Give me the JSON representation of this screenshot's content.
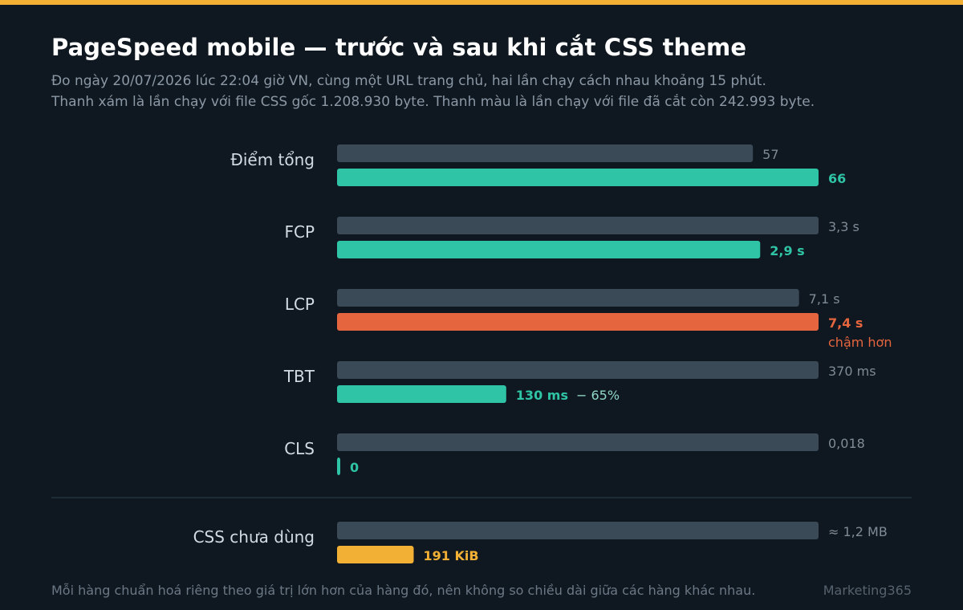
{
  "header": {
    "title": "PageSpeed mobile — trước và sau khi cắt CSS theme",
    "subtitle_line1": "Đo ngày 20/07/2026 lúc 22:04 giờ VN, cùng một URL trang chủ, hai lần chạy cách nhau khoảng 15 phút.",
    "subtitle_line2": "Thanh xám là lần chạy với file CSS gốc 1.208.930 byte. Thanh màu là lần chạy với file đã cắt còn 242.993 byte."
  },
  "footer": {
    "note": "Mỗi hàng chuẩn hoá riêng theo giá trị lớn hơn của hàng đó, nên không so chiều dài giữa các hàng khác nhau.",
    "brand": "Marketing365"
  },
  "colors": {
    "before": "#3a4a57",
    "improved": "#2ec4a5",
    "worse": "#e5663e",
    "css": "#f2b134",
    "before_label": "#7f8b96",
    "category_label": "#d3dbe2",
    "note_text": "#8fd8c6"
  },
  "chart_data": {
    "type": "bar",
    "orientation": "horizontal",
    "normalization": "per-row max",
    "series": [
      {
        "name": "before",
        "description_key": "gray"
      },
      {
        "name": "after",
        "description_key": "colored"
      }
    ],
    "rows": [
      {
        "category": "Điểm tổng",
        "before": 57,
        "after": 66,
        "before_label": "57",
        "after_label": "66",
        "status": "improved",
        "note": ""
      },
      {
        "category": "FCP",
        "before": 3.3,
        "after": 2.9,
        "before_label": "3,3 s",
        "after_label": "2,9 s",
        "status": "improved",
        "note": ""
      },
      {
        "category": "LCP",
        "before": 7.1,
        "after": 7.4,
        "before_label": "7,1 s",
        "after_label": "7,4 s",
        "status": "worse",
        "note": "chậm hơn"
      },
      {
        "category": "TBT",
        "before": 370,
        "after": 130,
        "before_label": "370 ms",
        "after_label": "130 ms",
        "status": "improved",
        "note": "− 65%"
      },
      {
        "category": "CLS",
        "before": 0.018,
        "after": 0,
        "before_label": "0,018",
        "after_label": "0",
        "status": "improved",
        "note": ""
      }
    ],
    "extra_row": {
      "category": "CSS chưa dùng",
      "before": 1.2,
      "after": 0.191,
      "unit": "MB",
      "before_label": "≈ 1,2 MB",
      "after_label": "191 KiB",
      "status": "css",
      "note": ""
    }
  }
}
